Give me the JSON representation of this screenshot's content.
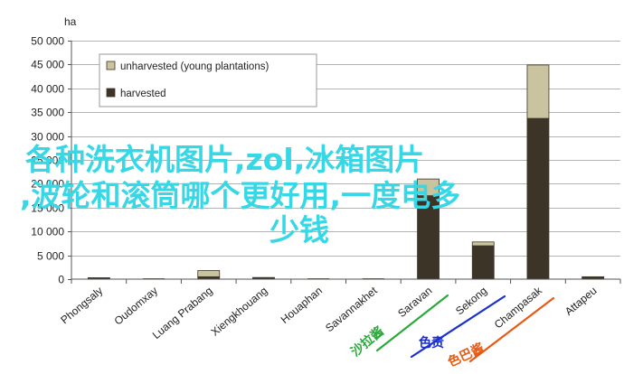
{
  "chart_data": {
    "type": "bar",
    "stacked": true,
    "ylabel": "ha",
    "ylim": [
      0,
      50000
    ],
    "yticks": [
      0,
      5000,
      10000,
      15000,
      20000,
      25000,
      30000,
      35000,
      40000,
      45000,
      50000
    ],
    "ytick_labels": [
      "0",
      "5 000",
      "10 000",
      "15 000",
      "20 000",
      "25 000",
      "30 000",
      "35 000",
      "40 000",
      "45 000",
      "50 000"
    ],
    "grid": true,
    "legend_position": "top-left",
    "categories": [
      "Phongsaly",
      "Oudomxay",
      "Luang Prabang",
      "Xiengkhouang",
      "Houaphan",
      "Savannakhet",
      "Saravan",
      "Sekong",
      "Champasak",
      "Attapeu"
    ],
    "series": [
      {
        "name": "harvested",
        "color": "#3d3428",
        "values": [
          200,
          0,
          500,
          250,
          0,
          0,
          17500,
          7000,
          33700,
          400
        ]
      },
      {
        "name": "unharvested (young plantations)",
        "color": "#c9c39f",
        "values": [
          100,
          0,
          1300,
          100,
          0,
          0,
          3500,
          800,
          11200,
          100
        ]
      }
    ]
  },
  "overlay": {
    "line1": "各种洗衣机图片,zol,冰箱图片",
    "line2": ",波轮和滚筒哪个更好用,一度电多",
    "line3": "少钱"
  },
  "handwritten": [
    {
      "text": "沙拉酱",
      "color": "#2aaa3a"
    },
    {
      "text": "色责",
      "color": "#1b2fd0"
    },
    {
      "text": "色巴酱",
      "color": "#e85a14"
    }
  ]
}
